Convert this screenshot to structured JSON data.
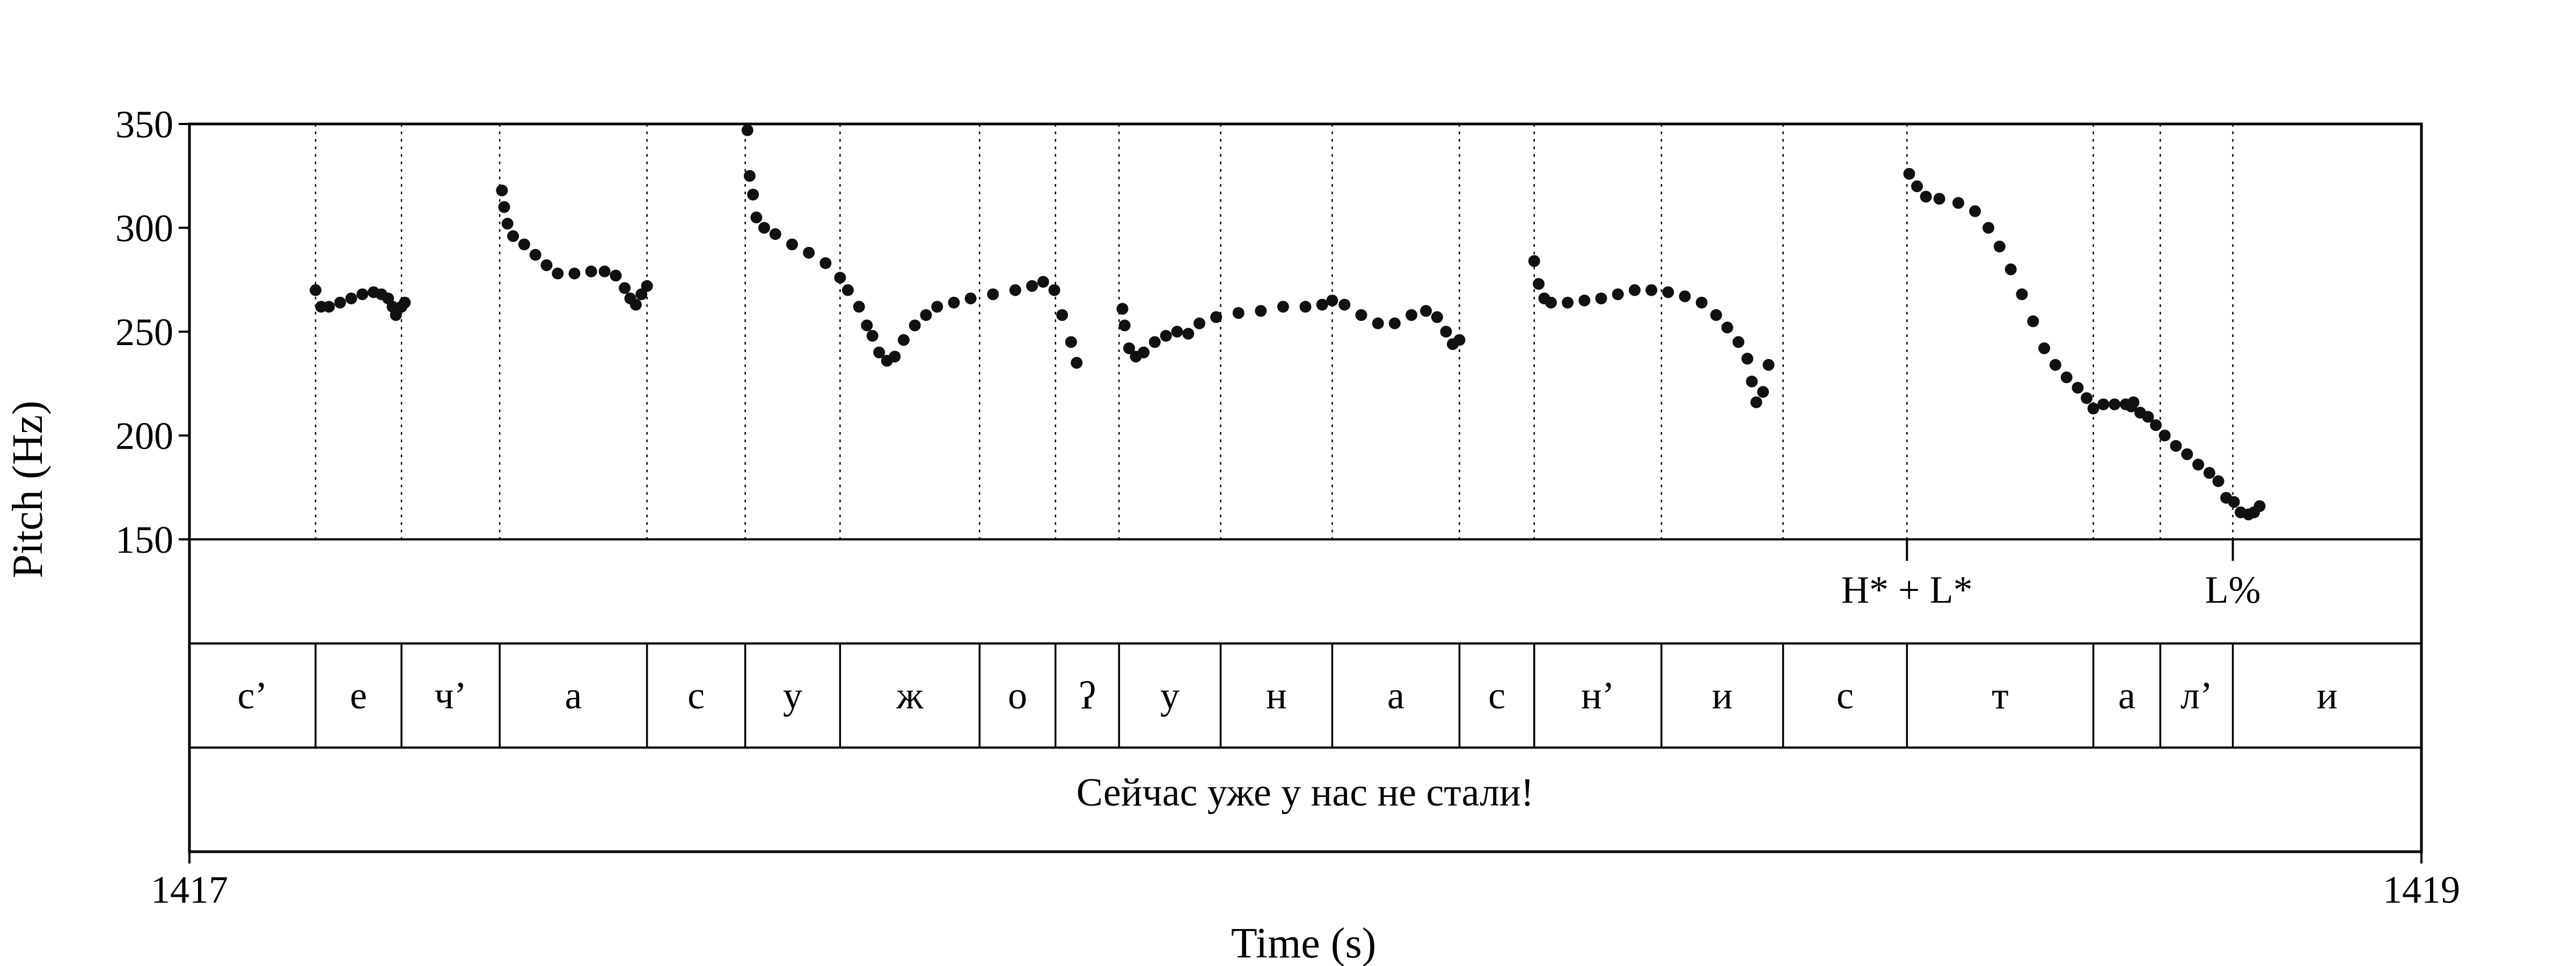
{
  "chart_data": {
    "type": "scatter",
    "title": "",
    "xlabel": "Time (s)",
    "ylabel": "Pitch (Hz)",
    "xlim": [
      1417,
      1419
    ],
    "ylim": [
      150,
      350
    ],
    "xticks": [
      "1417",
      "1419"
    ],
    "yticks": [
      "150",
      "200",
      "250",
      "300",
      "350"
    ],
    "grid": false,
    "boundaries": [
      1417.113,
      1417.19,
      1417.278,
      1417.41,
      1417.498,
      1417.583,
      1417.708,
      1417.776,
      1417.833,
      1417.924,
      1418.024,
      1418.138,
      1418.205,
      1418.319,
      1418.428,
      1418.539,
      1418.706,
      1418.766,
      1418.831
    ],
    "tones": [
      {
        "label": "H* + L*",
        "t": 1418.539
      },
      {
        "label": "L%",
        "t": 1418.831
      }
    ],
    "segments": [
      "с’",
      "е",
      "ч’",
      "а",
      "с",
      "у",
      "ж",
      "о",
      "ʔ",
      "у",
      "н",
      "а",
      "с",
      "н’",
      "и",
      "с",
      "т",
      "а",
      "л’",
      "и",
      ""
    ],
    "sentence": "Сейчас уже у нас не стали!",
    "contours": [
      [
        [
          1417.113,
          270
        ],
        [
          1417.118,
          262
        ],
        [
          1417.125,
          262
        ],
        [
          1417.135,
          264
        ],
        [
          1417.145,
          266
        ],
        [
          1417.155,
          268
        ],
        [
          1417.165,
          269
        ],
        [
          1417.172,
          268
        ],
        [
          1417.178,
          266
        ],
        [
          1417.182,
          262
        ],
        [
          1417.185,
          258
        ],
        [
          1417.19,
          262
        ],
        [
          1417.193,
          264
        ]
      ],
      [
        [
          1417.28,
          318
        ],
        [
          1417.282,
          310
        ],
        [
          1417.285,
          302
        ],
        [
          1417.29,
          296
        ],
        [
          1417.3,
          292
        ],
        [
          1417.31,
          287
        ],
        [
          1417.32,
          282
        ],
        [
          1417.33,
          278
        ],
        [
          1417.345,
          278
        ],
        [
          1417.36,
          279
        ],
        [
          1417.372,
          279
        ],
        [
          1417.382,
          277
        ],
        [
          1417.39,
          271
        ],
        [
          1417.395,
          266
        ],
        [
          1417.4,
          263
        ],
        [
          1417.405,
          268
        ],
        [
          1417.41,
          272
        ]
      ],
      [
        [
          1417.5,
          347
        ],
        [
          1417.502,
          325
        ],
        [
          1417.505,
          316
        ],
        [
          1417.508,
          305
        ],
        [
          1417.515,
          300
        ],
        [
          1417.525,
          297
        ],
        [
          1417.54,
          292
        ],
        [
          1417.555,
          288
        ],
        [
          1417.57,
          283
        ],
        [
          1417.583,
          276
        ],
        [
          1417.59,
          270
        ],
        [
          1417.6,
          262
        ],
        [
          1417.607,
          253
        ],
        [
          1417.612,
          248
        ],
        [
          1417.618,
          240
        ],
        [
          1417.625,
          236
        ],
        [
          1417.632,
          238
        ],
        [
          1417.64,
          246
        ],
        [
          1417.65,
          253
        ],
        [
          1417.66,
          258
        ],
        [
          1417.67,
          262
        ],
        [
          1417.685,
          264
        ],
        [
          1417.7,
          266
        ],
        [
          1417.72,
          268
        ],
        [
          1417.74,
          270
        ],
        [
          1417.755,
          272
        ],
        [
          1417.765,
          274
        ],
        [
          1417.775,
          270
        ],
        [
          1417.782,
          258
        ],
        [
          1417.79,
          245
        ],
        [
          1417.795,
          235
        ]
      ],
      [
        [
          1417.836,
          261
        ],
        [
          1417.838,
          253
        ],
        [
          1417.842,
          242
        ],
        [
          1417.848,
          238
        ],
        [
          1417.855,
          240
        ],
        [
          1417.865,
          245
        ],
        [
          1417.875,
          248
        ],
        [
          1417.885,
          250
        ],
        [
          1417.895,
          249
        ],
        [
          1417.905,
          254
        ],
        [
          1417.92,
          257
        ],
        [
          1417.94,
          259
        ],
        [
          1417.96,
          260
        ],
        [
          1417.98,
          262
        ],
        [
          1418.0,
          262
        ],
        [
          1418.015,
          263
        ],
        [
          1418.024,
          265
        ],
        [
          1418.035,
          263
        ],
        [
          1418.05,
          258
        ],
        [
          1418.065,
          254
        ],
        [
          1418.08,
          254
        ],
        [
          1418.095,
          258
        ],
        [
          1418.108,
          260
        ],
        [
          1418.118,
          257
        ],
        [
          1418.126,
          250
        ],
        [
          1418.132,
          244
        ],
        [
          1418.138,
          246
        ]
      ],
      [
        [
          1418.205,
          284
        ],
        [
          1418.209,
          273
        ],
        [
          1418.214,
          266
        ],
        [
          1418.22,
          264
        ],
        [
          1418.235,
          264
        ],
        [
          1418.25,
          265
        ],
        [
          1418.265,
          266
        ],
        [
          1418.28,
          268
        ],
        [
          1418.295,
          270
        ],
        [
          1418.31,
          270
        ],
        [
          1418.325,
          269
        ],
        [
          1418.34,
          267
        ],
        [
          1418.355,
          264
        ],
        [
          1418.368,
          258
        ],
        [
          1418.378,
          252
        ],
        [
          1418.388,
          245
        ],
        [
          1418.396,
          237
        ],
        [
          1418.4,
          226
        ],
        [
          1418.404,
          216
        ],
        [
          1418.41,
          221
        ],
        [
          1418.415,
          234
        ]
      ],
      [
        [
          1418.541,
          326
        ],
        [
          1418.548,
          320
        ],
        [
          1418.556,
          315
        ],
        [
          1418.568,
          314
        ],
        [
          1418.585,
          312
        ],
        [
          1418.6,
          308
        ],
        [
          1418.612,
          300
        ],
        [
          1418.622,
          291
        ],
        [
          1418.632,
          280
        ],
        [
          1418.642,
          268
        ],
        [
          1418.652,
          255
        ],
        [
          1418.662,
          242
        ],
        [
          1418.672,
          234
        ],
        [
          1418.682,
          228
        ],
        [
          1418.692,
          223
        ],
        [
          1418.7,
          218
        ],
        [
          1418.706,
          213
        ],
        [
          1418.715,
          215
        ],
        [
          1418.725,
          215
        ],
        [
          1418.735,
          215
        ],
        [
          1418.74,
          214
        ],
        [
          1418.748,
          211
        ],
        [
          1418.755,
          209
        ],
        [
          1418.762,
          205
        ],
        [
          1418.77,
          200
        ],
        [
          1418.78,
          195
        ],
        [
          1418.79,
          191
        ],
        [
          1418.8,
          186
        ],
        [
          1418.81,
          182
        ],
        [
          1418.818,
          178
        ],
        [
          1418.825,
          170
        ],
        [
          1418.832,
          168
        ],
        [
          1418.838,
          163
        ],
        [
          1418.845,
          162
        ],
        [
          1418.85,
          163
        ],
        [
          1418.855,
          166
        ],
        [
          1418.742,
          216
        ]
      ]
    ]
  }
}
